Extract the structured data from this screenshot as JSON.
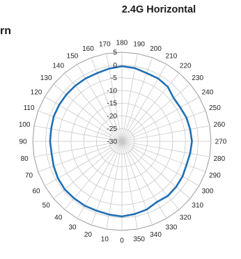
{
  "chart_data": {
    "type": "polar-line",
    "title": "2.4G Horizontal",
    "clipped_left_title": "rn",
    "angle_ticks": [
      "180",
      "190",
      "200",
      "210",
      "220",
      "230",
      "240",
      "250",
      "260",
      "270",
      "280",
      "290",
      "300",
      "310",
      "320",
      "330",
      "340",
      "350",
      "0",
      "10",
      "20",
      "30",
      "40",
      "50",
      "60",
      "70",
      "80",
      "90",
      "100",
      "110",
      "120",
      "130",
      "140",
      "150",
      "160",
      "170"
    ],
    "radial_ticks": [
      "5",
      "0",
      "-5",
      "-10",
      "-15",
      "-20",
      "-25",
      "-30"
    ],
    "rlim": [
      -30,
      5
    ],
    "angle_orientation": "180 at top, increasing clockwise, 0 at bottom",
    "grid": true,
    "series": [
      {
        "color": "#1f6fb5",
        "theta": [
          0,
          10,
          20,
          30,
          40,
          50,
          60,
          70,
          80,
          90,
          100,
          110,
          120,
          130,
          140,
          150,
          160,
          170,
          180,
          190,
          200,
          210,
          220,
          230,
          240,
          250,
          260,
          270,
          280,
          290,
          300,
          310,
          320,
          330,
          340,
          350
        ],
        "values": [
          -0.5,
          -0.8,
          -1.0,
          -0.8,
          -0.8,
          -0.7,
          -1.0,
          -1.5,
          -2.0,
          -1.8,
          -1.8,
          -1.5,
          -1.5,
          -1.5,
          -1.5,
          -1.5,
          -1.5,
          -1.0,
          -0.5,
          -0.8,
          -1.5,
          -1.5,
          -2.0,
          -3.5,
          -3.5,
          -3.0,
          -2.8,
          -2.5,
          -2.8,
          -3.0,
          -2.5,
          -2.2,
          -2.0,
          -2.5,
          -1.5,
          -1.0
        ]
      }
    ]
  }
}
